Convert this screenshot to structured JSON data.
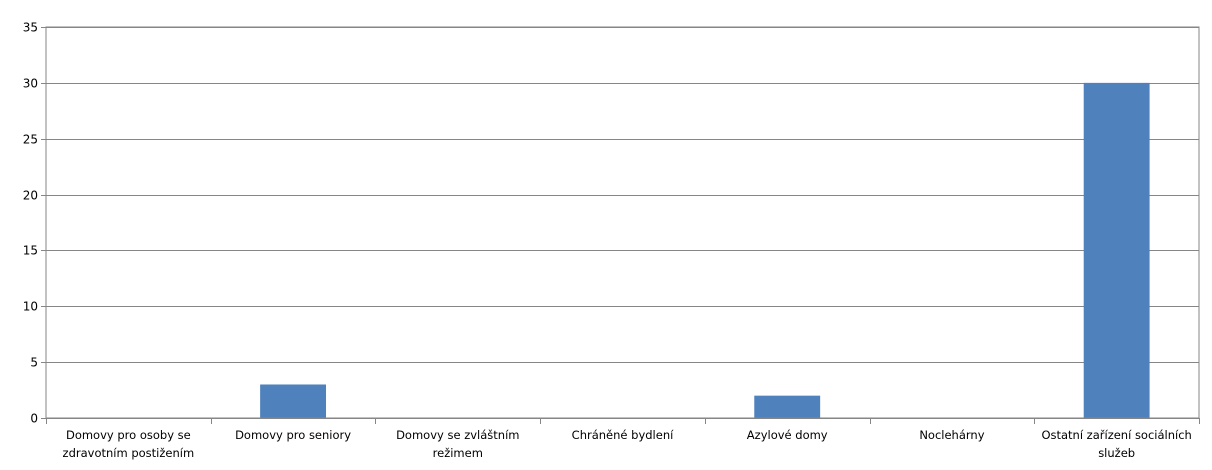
{
  "chart_data": {
    "type": "bar",
    "title": "",
    "xlabel": "",
    "ylabel": "",
    "categories": [
      [
        "Domovy pro osoby se",
        "zdravotním postižením"
      ],
      [
        "Domovy pro seniory"
      ],
      [
        "Domovy se zvláštním",
        "režimem"
      ],
      [
        "Chráněné bydlení"
      ],
      [
        "Azylové domy"
      ],
      [
        "Noclehárny"
      ],
      [
        "Ostatní zařízení sociálních",
        "služeb"
      ]
    ],
    "values": [
      0,
      3,
      0,
      0,
      2,
      0,
      30
    ],
    "ylim": [
      0,
      35
    ],
    "yticks": [
      0,
      5,
      10,
      15,
      20,
      25,
      30,
      35
    ],
    "grid": true,
    "legend": "none",
    "bar_color": "#4F81BD"
  }
}
